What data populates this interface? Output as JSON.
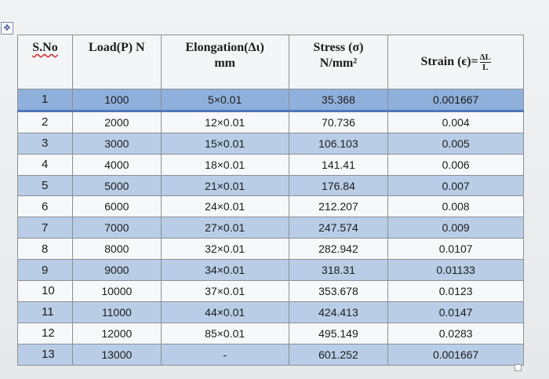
{
  "table": {
    "header": [
      [
        "S.No"
      ],
      [
        "Load(P) N"
      ],
      [
        "Elongation(Δι)",
        "mm"
      ],
      [
        "Stress (σ)",
        "N/mm²"
      ],
      [
        "Strain (ϵ)=",
        "ΔL",
        "L"
      ]
    ],
    "rows": [
      [
        "1",
        "1000",
        "5×0.01",
        "35.368",
        "0.001667"
      ],
      [
        "2",
        "2000",
        "12×0.01",
        "70.736",
        "0.004"
      ],
      [
        "3",
        "3000",
        "15×0.01",
        "106.103",
        "0.005"
      ],
      [
        "4",
        "4000",
        "18×0.01",
        "141.41",
        "0.006"
      ],
      [
        "5",
        "5000",
        "21×0.01",
        "176.84",
        "0.007"
      ],
      [
        "6",
        "6000",
        "24×0.01",
        "212.207",
        "0.008"
      ],
      [
        "7",
        "7000",
        "27×0.01",
        "247.574",
        "0.009"
      ],
      [
        "8",
        "8000",
        "32×0.01",
        "282.942",
        "0.0107"
      ],
      [
        "9",
        "9000",
        "34×0.01",
        "318.31",
        "0.01133"
      ],
      [
        "10",
        "10000",
        "37×0.01",
        "353.678",
        "0.0123"
      ],
      [
        "11",
        "11000",
        "44×0.01",
        "424.413",
        "0.0147"
      ],
      [
        "12",
        "12000",
        "85×0.01",
        "495.149",
        "0.0283"
      ],
      [
        "13",
        "13000",
        "-",
        "601.252",
        "0.001667"
      ]
    ]
  }
}
